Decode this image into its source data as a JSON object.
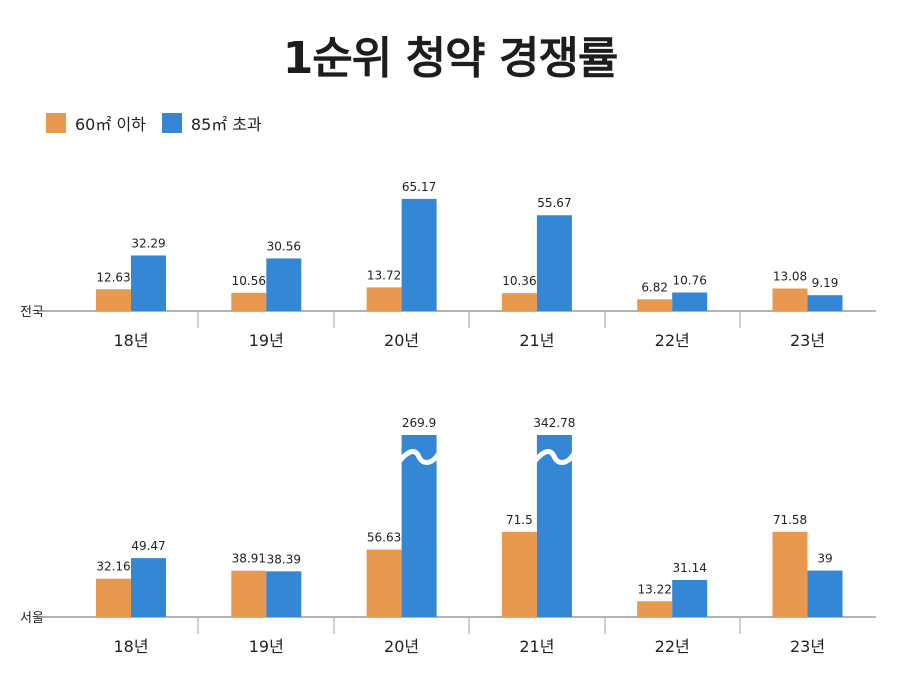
{
  "title": "1순위 청약 경쟁률",
  "legend": [
    {
      "label": "60㎡ 이하",
      "color": "#E8994F"
    },
    {
      "label": "85㎡ 초과",
      "color": "#3387D5"
    }
  ],
  "chart_data": [
    {
      "type": "bar",
      "region": "전국",
      "categories": [
        "18년",
        "19년",
        "20년",
        "21년",
        "22년",
        "23년"
      ],
      "series": [
        {
          "name": "60㎡ 이하",
          "values": [
            12.63,
            10.56,
            13.72,
            10.36,
            6.82,
            13.08
          ]
        },
        {
          "name": "85㎡ 초과",
          "values": [
            32.29,
            30.56,
            65.17,
            55.67,
            10.76,
            9.19
          ]
        }
      ],
      "grid": false,
      "legend_position": "top-left"
    },
    {
      "type": "bar",
      "region": "서울",
      "categories": [
        "18년",
        "19년",
        "20년",
        "21년",
        "22년",
        "23년"
      ],
      "series": [
        {
          "name": "60㎡ 이하",
          "values": [
            32.16,
            38.91,
            56.63,
            71.5,
            13.22,
            71.58
          ]
        },
        {
          "name": "85㎡ 초과",
          "values": [
            49.47,
            38.39,
            269.9,
            342.78,
            31.14,
            39
          ]
        }
      ],
      "broken_bars": [
        {
          "series": 1,
          "index": 2
        },
        {
          "series": 1,
          "index": 3
        }
      ],
      "grid": false,
      "legend_position": "top-left"
    }
  ]
}
